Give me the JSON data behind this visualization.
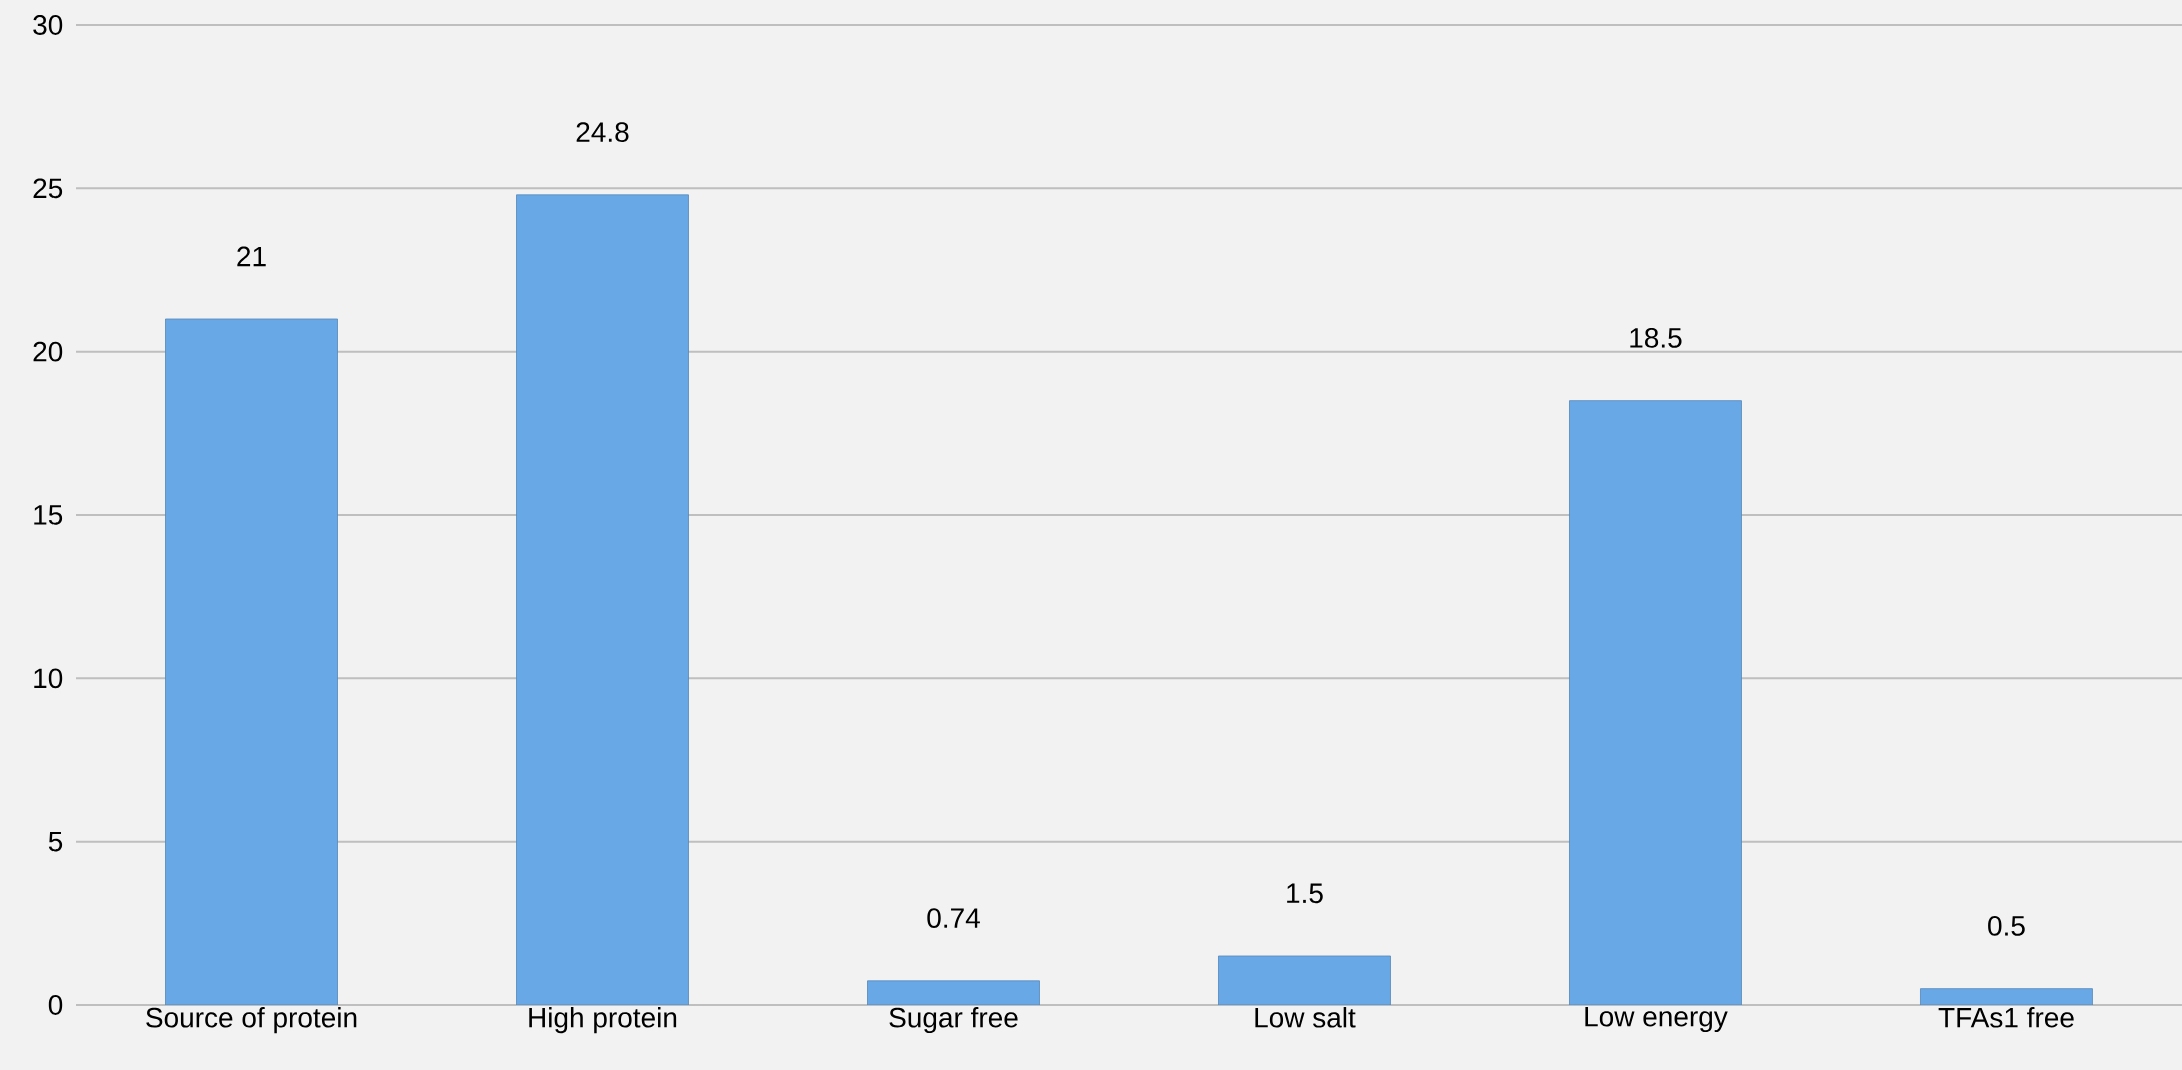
{
  "chart_data": {
    "type": "bar",
    "categories": [
      "Source of protein",
      "High protein",
      "Sugar free",
      "Low salt",
      "Low energy",
      "TFAs1 free"
    ],
    "values": [
      21,
      24.8,
      0.74,
      1.5,
      18.5,
      0.5
    ],
    "color": "#69a8e6",
    "ylim": [
      0,
      30
    ],
    "yticks": [
      0,
      5,
      10,
      15,
      20,
      25,
      30
    ],
    "grid": "y",
    "data_labels": true
  }
}
